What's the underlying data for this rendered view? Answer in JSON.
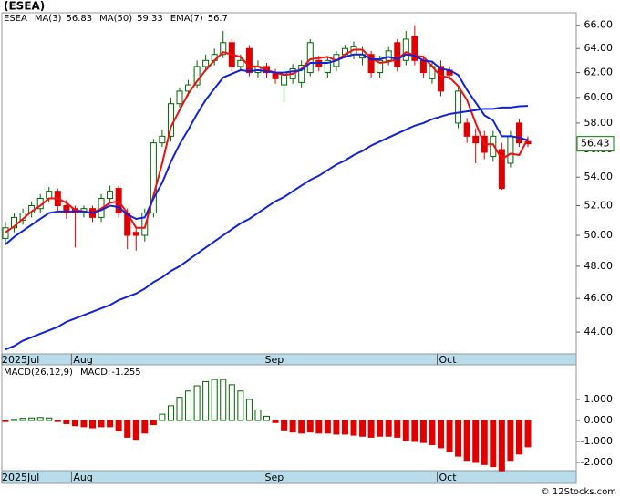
{
  "chart_data": [
    {
      "type": "candlestick",
      "title": "(ESEA)",
      "symbol": "ESEA",
      "log_scale": true,
      "categories": [
        "2025Jul",
        null,
        null,
        null,
        null,
        null,
        null,
        null,
        "Aug",
        null,
        null,
        null,
        null,
        null,
        null,
        null,
        null,
        null,
        null,
        null,
        null,
        null,
        null,
        null,
        null,
        null,
        null,
        null,
        null,
        null,
        "Sep",
        null,
        null,
        null,
        null,
        null,
        null,
        null,
        null,
        null,
        null,
        null,
        null,
        null,
        null,
        null,
        null,
        null,
        null,
        null,
        "Oct",
        null,
        null,
        null,
        null,
        null,
        null,
        null,
        null,
        null,
        null
      ],
      "open": [
        49.8,
        50.5,
        51,
        51.5,
        51.8,
        52.5,
        53,
        52,
        51.8,
        51.5,
        51.8,
        51.2,
        52.5,
        53.2,
        51.5,
        50.2,
        50,
        51.5,
        56.5,
        57,
        59.5,
        60.5,
        61,
        62.5,
        63,
        63.5,
        64.5,
        62.5,
        64,
        62,
        62.5,
        62,
        61,
        61.5,
        61.2,
        62,
        63,
        62,
        62.5,
        63.5,
        63.5,
        63.2,
        63.5,
        62,
        63,
        64.5,
        63,
        65,
        63,
        61.5,
        62.5,
        62.2,
        58,
        58,
        57,
        57,
        55.5,
        56,
        55,
        58,
        56.6
      ],
      "high": [
        50.9,
        51.5,
        51.8,
        52.3,
        52.8,
        53.3,
        53.2,
        52.4,
        52,
        52,
        52,
        52.8,
        53.4,
        53.4,
        51.8,
        50.6,
        51.8,
        56.8,
        57.5,
        60,
        60.8,
        61.4,
        63,
        63.5,
        64,
        65.5,
        64.8,
        63.5,
        64.3,
        63,
        62.8,
        62.3,
        62.4,
        62.7,
        63,
        64.8,
        63.4,
        63.3,
        63.8,
        64.3,
        64.6,
        64.2,
        63.8,
        63.4,
        64.2,
        64.8,
        65.5,
        66,
        63.4,
        62.8,
        63,
        62.5,
        60.8,
        58.4,
        57.6,
        57.4,
        57.4,
        56.5,
        57.4,
        58.3,
        57
      ],
      "low": [
        49.5,
        50.2,
        50.7,
        51.2,
        51.5,
        52.2,
        51.6,
        51.1,
        49.2,
        51.2,
        50.9,
        50.9,
        52.2,
        51.2,
        49.1,
        49,
        49.6,
        51.2,
        56.2,
        56.6,
        59.2,
        60.1,
        60.7,
        62.1,
        62.6,
        63.2,
        62.1,
        62.1,
        61.7,
        61.6,
        61.6,
        61.1,
        59.6,
        61.1,
        60.8,
        61.7,
        62.1,
        61.6,
        62.1,
        63.2,
        63.1,
        62.6,
        61.6,
        61.6,
        62.6,
        62.1,
        62.6,
        62.6,
        61.6,
        61.1,
        60.1,
        61.4,
        57.6,
        56.5,
        55,
        55.3,
        55.1,
        53.1,
        54.7,
        56.2,
        56.2
      ],
      "close": [
        50.5,
        51.2,
        51.5,
        52,
        52.5,
        53,
        52,
        51.5,
        51.5,
        51.8,
        51.2,
        52.5,
        53,
        51.5,
        50,
        50,
        51.5,
        56.5,
        57,
        59.5,
        60.5,
        61,
        62.5,
        63,
        63.5,
        64.5,
        62.5,
        63,
        62,
        62.5,
        62,
        61.5,
        62,
        62.3,
        62.6,
        64.5,
        62.5,
        63,
        63.5,
        64,
        64.2,
        63.5,
        62,
        63,
        63.8,
        62.5,
        64.8,
        63,
        62,
        62.5,
        60.5,
        61.8,
        60.5,
        57,
        56.5,
        55.8,
        57,
        53.2,
        57,
        56.5,
        56.43
      ],
      "up_color": "#006400",
      "down_color": "#e00000",
      "series": [
        {
          "name": "MA(3)",
          "last": 56.83,
          "color": "#ee1111",
          "values": [
            50.2,
            50.6,
            51.1,
            51.6,
            52,
            52.5,
            52.5,
            52.2,
            51.7,
            51.6,
            51.5,
            51.8,
            52.2,
            52.3,
            51.5,
            50.5,
            50.5,
            52.7,
            55,
            57.7,
            59,
            60.3,
            61.3,
            62.2,
            63,
            63.7,
            63.5,
            63.3,
            62.5,
            62.5,
            62.2,
            62,
            61.8,
            61.9,
            62.3,
            63.1,
            63.2,
            63.3,
            63,
            63.5,
            63.9,
            63.9,
            63.2,
            62.8,
            62.9,
            63.1,
            63.7,
            63.4,
            63.3,
            62.5,
            61.7,
            61.6,
            60.9,
            59.8,
            58,
            56.4,
            56.4,
            55.3,
            55.7,
            55.6,
            56.83
          ]
        },
        {
          "name": "MA(50)",
          "last": 59.33,
          "color": "#1122dd",
          "values": [
            43.0,
            43.2,
            43.5,
            43.7,
            43.9,
            44.1,
            44.3,
            44.6,
            44.8,
            45.0,
            45.2,
            45.4,
            45.6,
            45.9,
            46.1,
            46.3,
            46.6,
            47.0,
            47.3,
            47.7,
            48.0,
            48.4,
            48.8,
            49.2,
            49.6,
            50.0,
            50.4,
            50.8,
            51.1,
            51.5,
            51.9,
            52.3,
            52.6,
            53.0,
            53.4,
            53.8,
            54.1,
            54.5,
            54.9,
            55.2,
            55.6,
            55.9,
            56.3,
            56.6,
            56.9,
            57.2,
            57.5,
            57.8,
            58.0,
            58.3,
            58.5,
            58.7,
            58.8,
            58.9,
            59.0,
            59.1,
            59.1,
            59.2,
            59.2,
            59.3,
            59.33
          ]
        },
        {
          "name": "EMA(7)",
          "last": 56.7,
          "color": "#1122dd",
          "values": [
            49.4,
            49.9,
            50.3,
            50.7,
            51.1,
            51.5,
            51.6,
            51.6,
            51.6,
            51.6,
            51.5,
            51.7,
            52,
            51.9,
            51.4,
            51.1,
            51.2,
            52.5,
            53.6,
            55.1,
            56.4,
            57.5,
            58.7,
            59.8,
            60.7,
            61.6,
            61.9,
            62.2,
            62.1,
            62.2,
            62.1,
            62,
            62,
            62.1,
            62.2,
            62.8,
            62.8,
            62.8,
            63,
            63.3,
            63.5,
            63.5,
            63.1,
            63.1,
            63.3,
            63.1,
            63.5,
            63.4,
            63,
            62.9,
            62.3,
            62.2,
            61.8,
            60.6,
            59.6,
            58.6,
            58.2,
            57,
            57,
            56.9,
            56.7
          ]
        }
      ],
      "ylim": [
        42.75,
        67.1
      ],
      "yticks": [
        {
          "value": 44,
          "label": "44.00"
        },
        {
          "value": 46,
          "label": "46.00"
        },
        {
          "value": 48,
          "label": "48.00"
        },
        {
          "value": 50,
          "label": "50.00"
        },
        {
          "value": 52,
          "label": "52.00"
        },
        {
          "value": 54,
          "label": "54.00"
        },
        {
          "value": 56,
          "label": "56.00"
        },
        {
          "value": 58,
          "label": "58.00"
        },
        {
          "value": 60,
          "label": "60.00"
        },
        {
          "value": 62,
          "label": "62.00"
        },
        {
          "value": 64,
          "label": "64.00"
        },
        {
          "value": 66,
          "label": "66.00"
        }
      ]
    },
    {
      "type": "bar",
      "title": "MACD(26,12,9)",
      "value_key": "MACD:",
      "categories": [
        "2025Jul",
        null,
        null,
        null,
        null,
        null,
        null,
        null,
        "Aug",
        null,
        null,
        null,
        null,
        null,
        null,
        null,
        null,
        null,
        null,
        null,
        null,
        null,
        null,
        null,
        null,
        null,
        null,
        null,
        null,
        null,
        "Sep",
        null,
        null,
        null,
        null,
        null,
        null,
        null,
        null,
        null,
        null,
        null,
        null,
        null,
        null,
        null,
        null,
        null,
        null,
        null,
        "Oct",
        null,
        null,
        null,
        null,
        null,
        null,
        null,
        null,
        null,
        null
      ],
      "values": [
        -0.05,
        0.05,
        0.1,
        0.12,
        0.14,
        0.12,
        -0.05,
        -0.15,
        -0.25,
        -0.3,
        -0.35,
        -0.3,
        -0.3,
        -0.5,
        -0.8,
        -0.9,
        -0.6,
        -0.2,
        0.3,
        0.7,
        1.1,
        1.4,
        1.65,
        1.85,
        1.95,
        1.95,
        1.7,
        1.4,
        1.0,
        0.5,
        0.2,
        -0.1,
        -0.45,
        -0.55,
        -0.6,
        -0.55,
        -0.6,
        -0.6,
        -0.65,
        -0.65,
        -0.7,
        -0.75,
        -0.8,
        -0.75,
        -0.75,
        -0.8,
        -0.95,
        -1.0,
        -1.05,
        -1.15,
        -1.3,
        -1.5,
        -1.7,
        -1.9,
        -2.0,
        -2.1,
        -2.2,
        -2.4,
        -1.9,
        -1.6,
        -1.255
      ],
      "up_color": "#006400",
      "down_color": "#e00000",
      "ylim": [
        -2.39,
        2.65
      ],
      "yticks": [
        {
          "value": -2,
          "label": "-2.000"
        },
        {
          "value": -1,
          "label": "-1.000"
        },
        {
          "value": 0,
          "label": "0.000"
        },
        {
          "value": 1,
          "label": "1.000"
        }
      ]
    }
  ],
  "footer": "© 12Stocks.com"
}
